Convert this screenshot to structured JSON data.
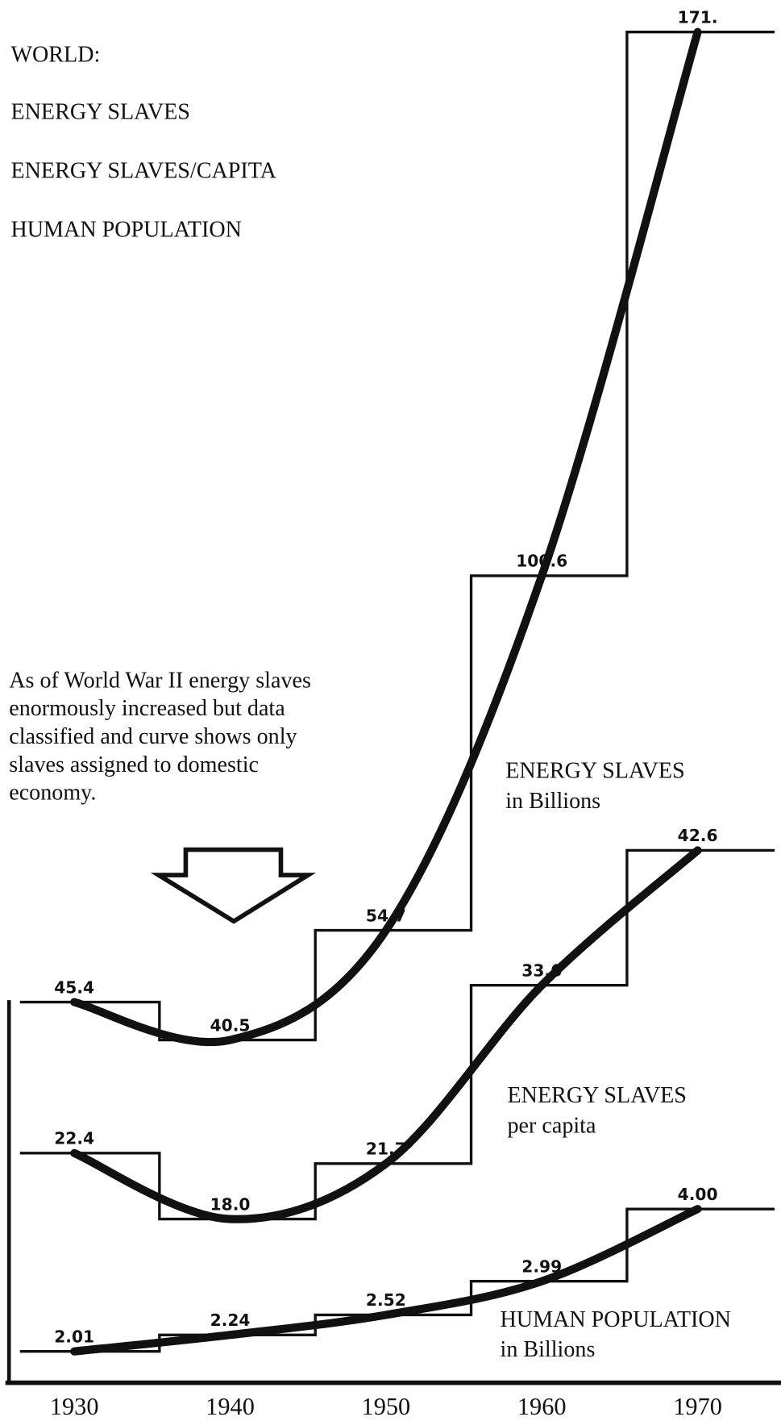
{
  "chart_data": {
    "type": "line",
    "title": "WORLD:",
    "x": [
      1930,
      1940,
      1950,
      1960,
      1970
    ],
    "xticks": [
      1930,
      1940,
      1950,
      1960,
      1970
    ],
    "series": [
      {
        "name": "ENERGY SLAVES",
        "color": "#111111",
        "label_lines": [
          "ENERGY SLAVES",
          "in Billions"
        ],
        "values": [
          45.4,
          40.5,
          54.7,
          100.6,
          171
        ],
        "value_labels": [
          "45.4",
          "40.5",
          "54.7",
          "100.6",
          "171."
        ]
      },
      {
        "name": "ENERGY SLAVES/CAPITA",
        "color": "#111111",
        "label_lines": [
          "ENERGY SLAVES",
          "per capita"
        ],
        "values": [
          22.4,
          18.0,
          21.7,
          33.6,
          42.6
        ],
        "value_labels": [
          "22.4",
          "18.0",
          "21.7",
          "33.6",
          "42.6"
        ]
      },
      {
        "name": "HUMAN POPULATION",
        "color": "#111111",
        "label_lines": [
          "HUMAN POPULATION",
          "in Billions"
        ],
        "values": [
          2.01,
          2.24,
          2.52,
          2.99,
          4.0
        ],
        "value_labels": [
          "2.01",
          "2.24",
          "2.52",
          "2.99",
          "4.00"
        ]
      }
    ],
    "annotation": [
      "As of World War II energy slaves",
      "enormously increased but data",
      "classified and curve shows only",
      "slaves assigned to domestic",
      "economy."
    ]
  }
}
